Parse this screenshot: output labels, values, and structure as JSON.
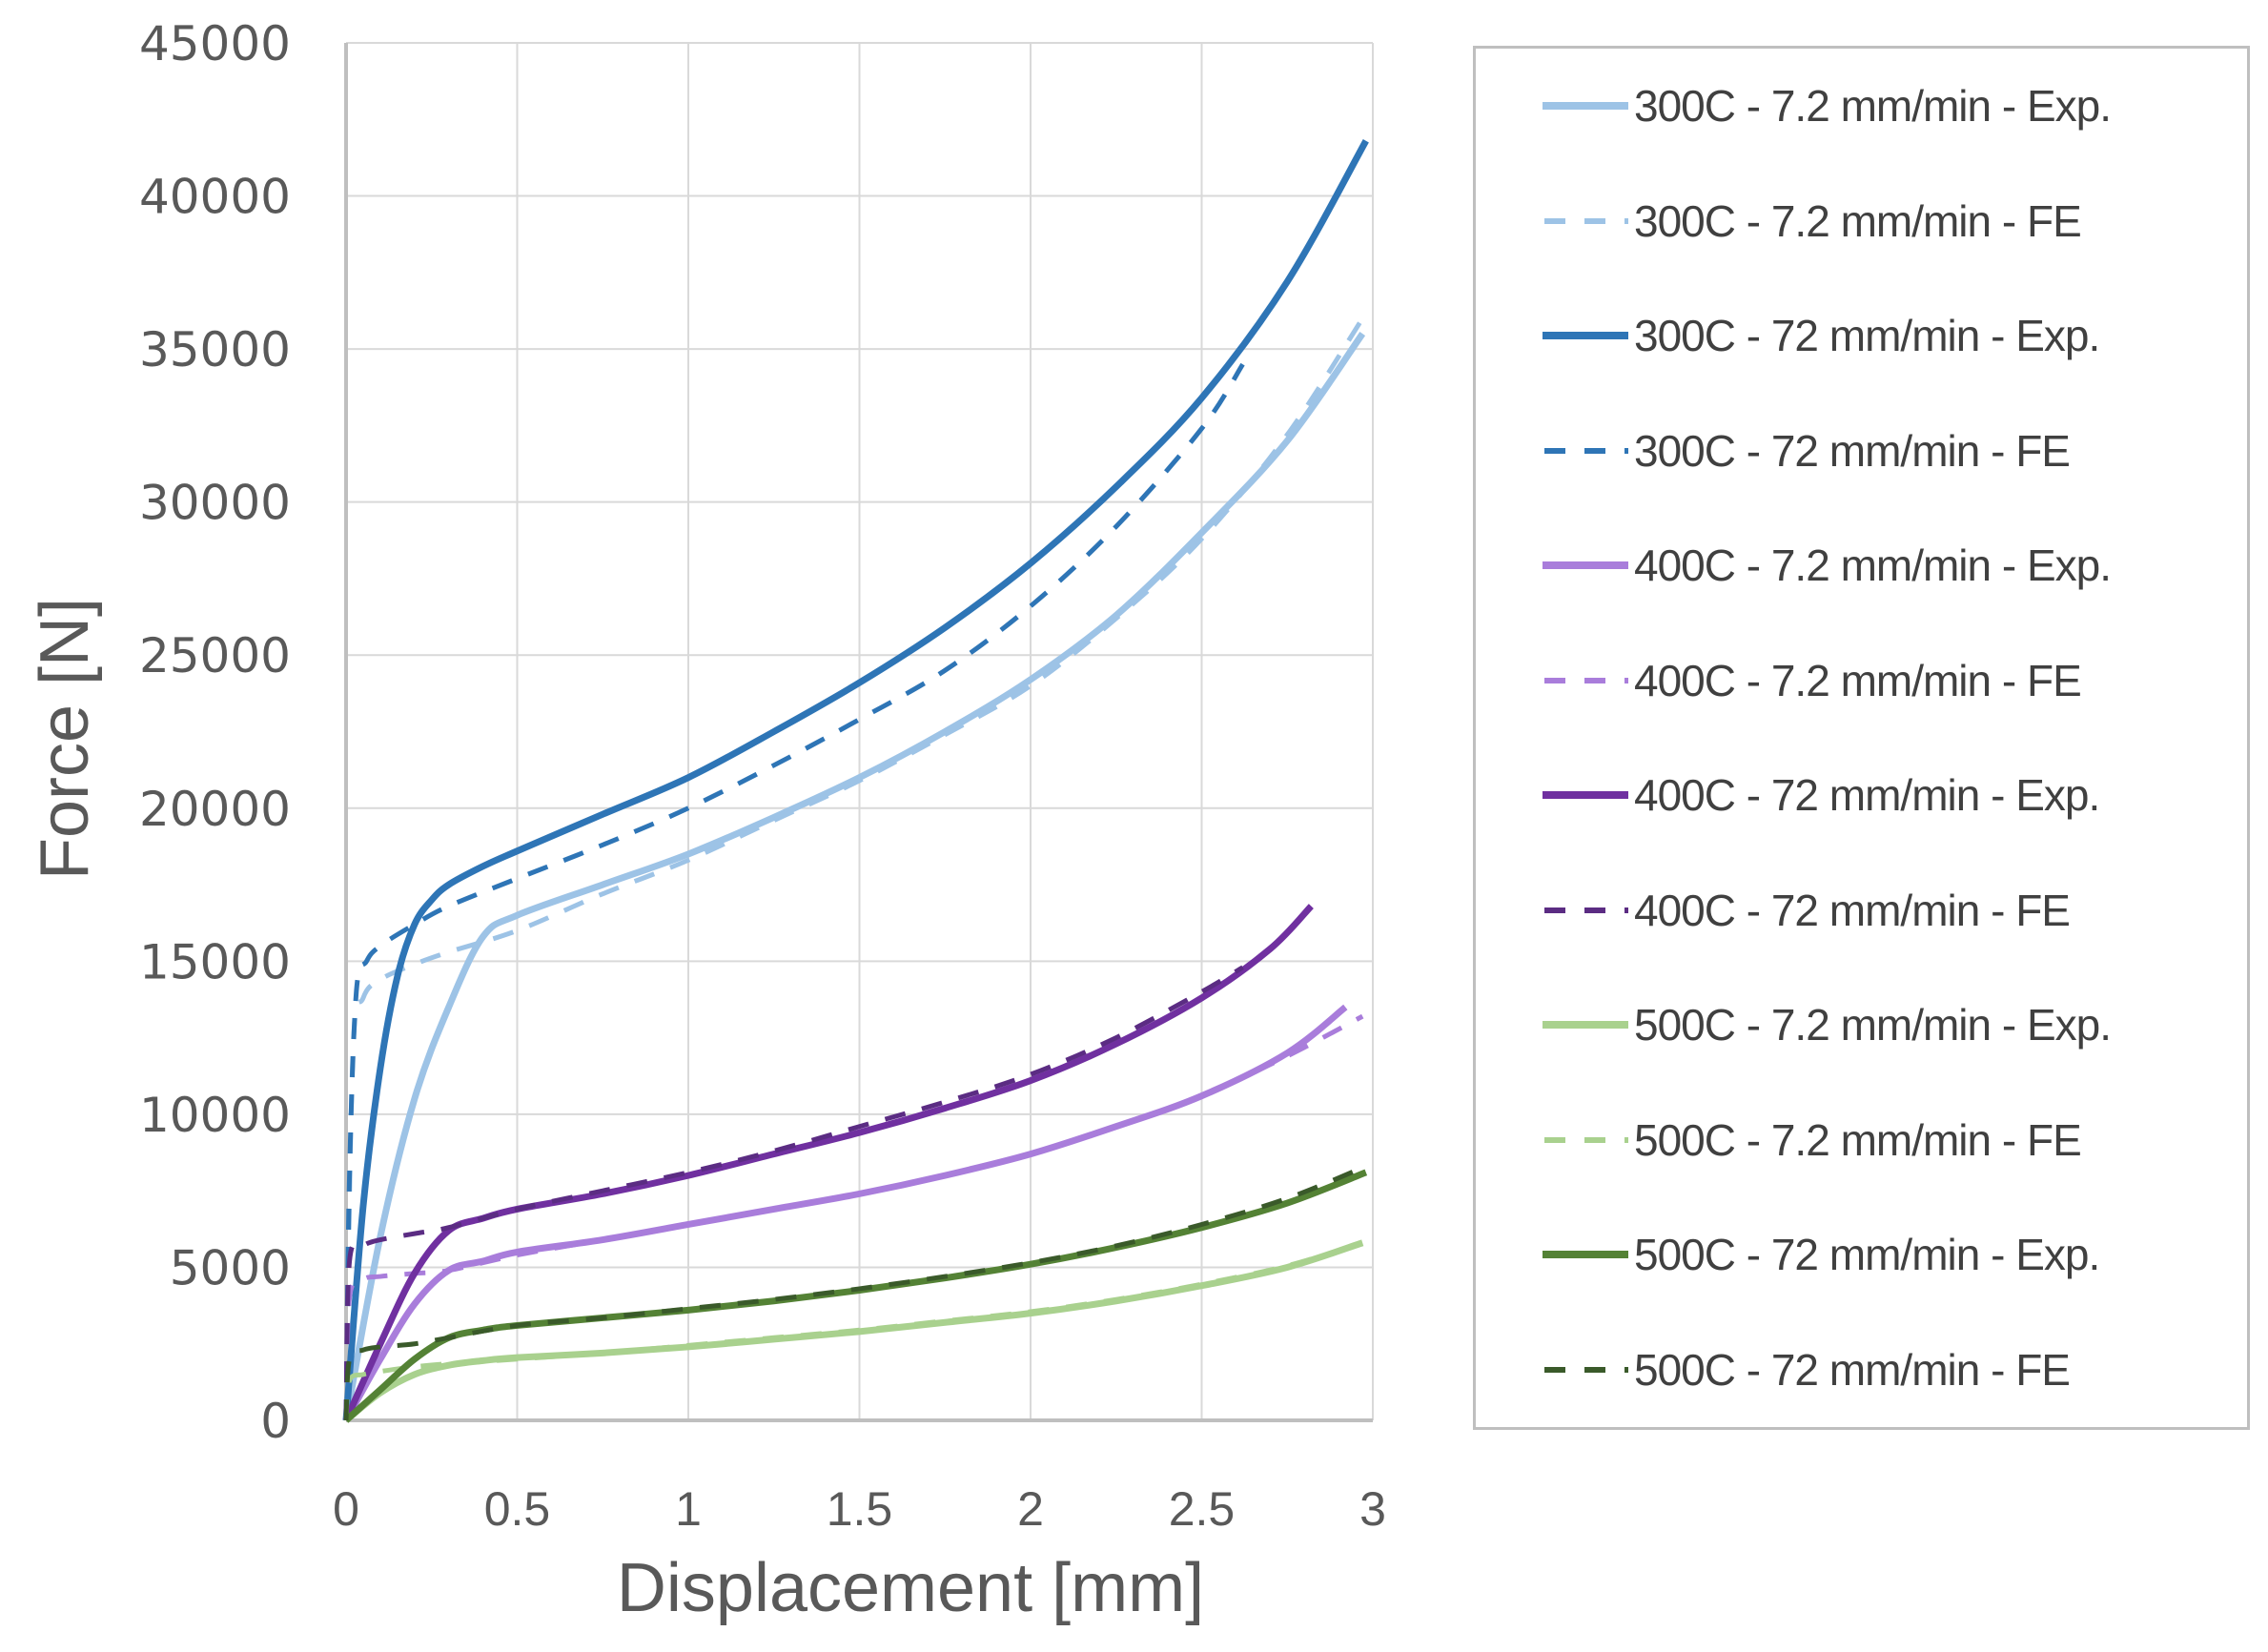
{
  "chart_data": {
    "type": "line",
    "title": "",
    "xlabel": "Displacement [mm]",
    "ylabel": "Force [N]",
    "xlim": [
      0,
      3
    ],
    "ylim": [
      0,
      45000
    ],
    "xticks": [
      "0",
      "0.5",
      "1",
      "1.5",
      "2",
      "2.5",
      "3"
    ],
    "yticks": [
      "0",
      "5000",
      "10000",
      "15000",
      "20000",
      "25000",
      "30000",
      "35000",
      "40000",
      "45000"
    ],
    "grid": true,
    "legend_position": "right",
    "series": [
      {
        "name": "300C - 7.2 mm/min - Exp.",
        "color": "#9dc3e6",
        "dash": false,
        "x": [
          0,
          0.1,
          0.2,
          0.3,
          0.4,
          0.5,
          0.75,
          1.0,
          1.25,
          1.5,
          1.75,
          2.0,
          2.25,
          2.5,
          2.75,
          2.97
        ],
        "y": [
          0,
          6000,
          10500,
          13500,
          15800,
          16500,
          17500,
          18500,
          19700,
          21000,
          22500,
          24200,
          26300,
          29000,
          32000,
          35500
        ]
      },
      {
        "name": "300C - 7.2 mm/min - FE",
        "color": "#9dc3e6",
        "dash": true,
        "x": [
          0,
          0.02,
          0.05,
          0.1,
          0.2,
          0.3,
          0.5,
          0.75,
          1.0,
          1.25,
          1.5,
          1.75,
          2.0,
          2.25,
          2.5,
          2.75,
          2.97
        ],
        "y": [
          0,
          12000,
          13800,
          14400,
          14900,
          15300,
          16000,
          17200,
          18300,
          19600,
          20900,
          22400,
          24000,
          26200,
          28800,
          32200,
          36000
        ]
      },
      {
        "name": "300C - 72 mm/min - Exp.",
        "color": "#2e75b6",
        "dash": false,
        "x": [
          0,
          0.05,
          0.1,
          0.15,
          0.2,
          0.25,
          0.3,
          0.4,
          0.5,
          0.75,
          1.0,
          1.25,
          1.5,
          1.75,
          2.0,
          2.25,
          2.5,
          2.75,
          2.98
        ],
        "y": [
          0,
          7000,
          11500,
          14500,
          16200,
          17000,
          17500,
          18100,
          18600,
          19800,
          21000,
          22500,
          24100,
          25900,
          28000,
          30500,
          33400,
          37200,
          41800
        ]
      },
      {
        "name": "300C - 72 mm/min - FE",
        "color": "#2e75b6",
        "dash": true,
        "x": [
          0,
          0.01,
          0.03,
          0.06,
          0.1,
          0.2,
          0.3,
          0.5,
          0.75,
          1.0,
          1.25,
          1.5,
          1.75,
          2.0,
          2.25,
          2.5,
          2.62
        ],
        "y": [
          0,
          8000,
          14000,
          15000,
          15500,
          16200,
          16800,
          17700,
          18800,
          20000,
          21400,
          22900,
          24500,
          26600,
          29200,
          32400,
          34500
        ]
      },
      {
        "name": "400C - 7.2 mm/min - Exp.",
        "color": "#a97ddb",
        "dash": false,
        "x": [
          0,
          0.1,
          0.2,
          0.3,
          0.4,
          0.5,
          0.75,
          1.0,
          1.25,
          1.5,
          1.75,
          2.0,
          2.25,
          2.5,
          2.75,
          2.92
        ],
        "y": [
          0,
          2000,
          3800,
          4900,
          5200,
          5500,
          5900,
          6400,
          6900,
          7400,
          8000,
          8700,
          9600,
          10600,
          12000,
          13500
        ]
      },
      {
        "name": "400C - 7.2 mm/min - FE",
        "color": "#a97ddb",
        "dash": true,
        "x": [
          0,
          0.01,
          0.05,
          0.1,
          0.2,
          0.3,
          0.5,
          0.75,
          1.0,
          1.25,
          1.5,
          1.75,
          2.0,
          2.25,
          2.5,
          2.75,
          2.97
        ],
        "y": [
          0,
          4000,
          4600,
          4700,
          4800,
          4900,
          5400,
          5900,
          6400,
          6900,
          7400,
          8000,
          8700,
          9600,
          10600,
          11900,
          13200
        ]
      },
      {
        "name": "400C - 72 mm/min - Exp.",
        "color": "#7030a0",
        "dash": false,
        "x": [
          0,
          0.1,
          0.2,
          0.3,
          0.4,
          0.5,
          0.75,
          1.0,
          1.25,
          1.5,
          1.75,
          2.0,
          2.25,
          2.5,
          2.7,
          2.82
        ],
        "y": [
          0,
          2500,
          4800,
          6200,
          6600,
          6900,
          7400,
          8000,
          8700,
          9400,
          10200,
          11100,
          12300,
          13800,
          15400,
          16800
        ]
      },
      {
        "name": "400C - 72 mm/min - FE",
        "color": "#5b2c83",
        "dash": true,
        "x": [
          0,
          0.01,
          0.05,
          0.1,
          0.2,
          0.3,
          0.5,
          0.75,
          1.0,
          1.25,
          1.5,
          1.75,
          2.0,
          2.25,
          2.5,
          2.62
        ],
        "y": [
          0,
          5200,
          5700,
          5900,
          6100,
          6300,
          6900,
          7500,
          8100,
          8800,
          9600,
          10400,
          11300,
          12500,
          14000,
          14800
        ]
      },
      {
        "name": "500C - 7.2 mm/min - Exp.",
        "color": "#a9d18e",
        "dash": false,
        "x": [
          0,
          0.1,
          0.2,
          0.3,
          0.4,
          0.5,
          0.75,
          1.0,
          1.25,
          1.5,
          1.75,
          2.0,
          2.25,
          2.5,
          2.75,
          2.97
        ],
        "y": [
          0,
          900,
          1500,
          1800,
          1950,
          2050,
          2200,
          2400,
          2650,
          2900,
          3200,
          3500,
          3900,
          4400,
          5000,
          5800
        ]
      },
      {
        "name": "500C - 7.2 mm/min - FE",
        "color": "#a9d18e",
        "dash": true,
        "x": [
          0,
          0.01,
          0.05,
          0.1,
          0.2,
          0.3,
          0.5,
          0.75,
          1.0,
          1.25,
          1.5,
          1.75,
          2.0,
          2.25,
          2.5,
          2.75,
          2.97
        ],
        "y": [
          0,
          1300,
          1500,
          1600,
          1750,
          1850,
          2000,
          2200,
          2450,
          2700,
          2950,
          3250,
          3550,
          3950,
          4450,
          5050,
          5800
        ]
      },
      {
        "name": "500C - 72 mm/min - Exp.",
        "color": "#548235",
        "dash": false,
        "x": [
          0,
          0.1,
          0.2,
          0.3,
          0.4,
          0.5,
          0.75,
          1.0,
          1.25,
          1.5,
          1.75,
          2.0,
          2.25,
          2.5,
          2.75,
          2.98
        ],
        "y": [
          0,
          1000,
          2000,
          2700,
          2950,
          3100,
          3350,
          3600,
          3900,
          4250,
          4650,
          5100,
          5650,
          6300,
          7100,
          8100
        ]
      },
      {
        "name": "500C - 72 mm/min - FE",
        "color": "#3a5a2a",
        "dash": true,
        "x": [
          0,
          0.01,
          0.05,
          0.1,
          0.2,
          0.3,
          0.5,
          0.75,
          1.0,
          1.25,
          1.5,
          1.75,
          2.0,
          2.25,
          2.5,
          2.75,
          2.98
        ],
        "y": [
          0,
          2000,
          2300,
          2400,
          2500,
          2700,
          3100,
          3350,
          3650,
          3950,
          4300,
          4700,
          5150,
          5700,
          6400,
          7250,
          8300
        ]
      }
    ]
  },
  "axes": {
    "x_title": "Displacement [mm]",
    "y_title": "Force [N]"
  },
  "legend": {
    "items": [
      {
        "label": "300C - 7.2 mm/min - Exp.",
        "color": "#9dc3e6",
        "dash": false
      },
      {
        "label": "300C - 7.2 mm/min - FE",
        "color": "#9dc3e6",
        "dash": true
      },
      {
        "label": "300C - 72 mm/min - Exp.",
        "color": "#2e75b6",
        "dash": false
      },
      {
        "label": "300C - 72 mm/min - FE",
        "color": "#2e75b6",
        "dash": true
      },
      {
        "label": "400C - 7.2 mm/min - Exp.",
        "color": "#a97ddb",
        "dash": false
      },
      {
        "label": "400C - 7.2 mm/min - FE",
        "color": "#a97ddb",
        "dash": true
      },
      {
        "label": "400C - 72 mm/min - Exp.",
        "color": "#7030a0",
        "dash": false
      },
      {
        "label": "400C - 72 mm/min - FE",
        "color": "#5b2c83",
        "dash": true
      },
      {
        "label": "500C - 7.2 mm/min - Exp.",
        "color": "#a9d18e",
        "dash": false
      },
      {
        "label": "500C - 7.2 mm/min - FE",
        "color": "#a9d18e",
        "dash": true
      },
      {
        "label": "500C - 72 mm/min - Exp.",
        "color": "#548235",
        "dash": false
      },
      {
        "label": "500C - 72 mm/min - FE",
        "color": "#3a5a2a",
        "dash": true
      }
    ]
  },
  "style": {
    "grid_color": "#d9d9d9",
    "axis_color": "#bfbfbf",
    "text_color": "#595959"
  }
}
